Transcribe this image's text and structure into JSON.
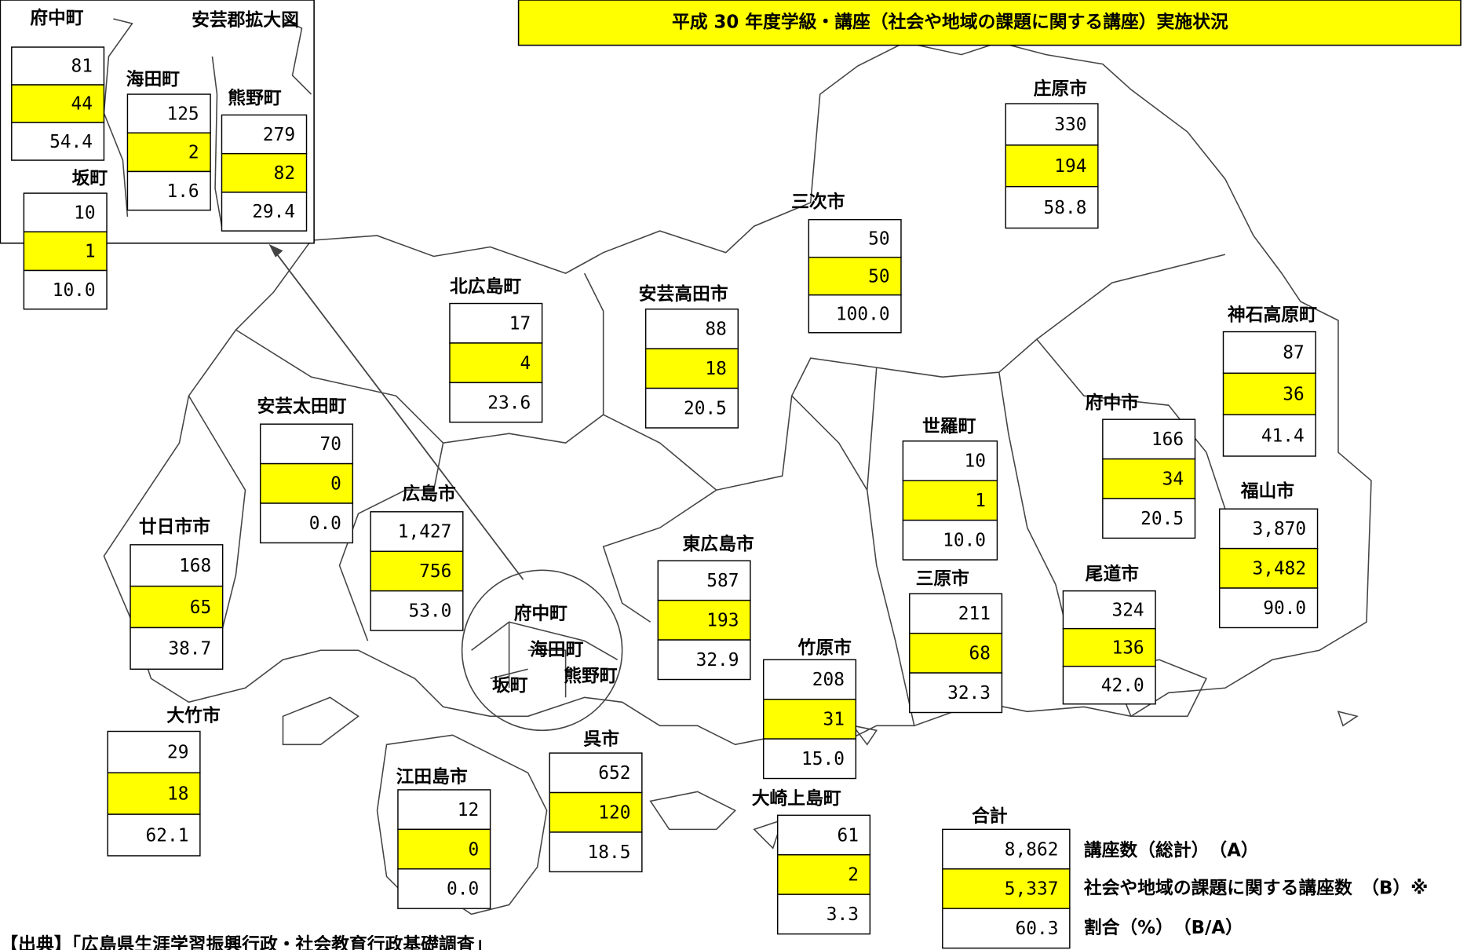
{
  "title": "平成 30 年度学級・講座（社会や地域の課題に関する講座）実施状況",
  "inset": {
    "title": "安芸郡拡大図",
    "towns": [
      {
        "name": "府中町",
        "a": "81",
        "b": "44",
        "ratio": "54.4"
      },
      {
        "name": "海田町",
        "a": "125",
        "b": "2",
        "ratio": "1.6"
      },
      {
        "name": "熊野町",
        "a": "279",
        "b": "82",
        "ratio": "29.4"
      },
      {
        "name": "坂町",
        "a": "10",
        "b": "1",
        "ratio": "10.0"
      }
    ]
  },
  "municipalities": [
    {
      "name": "庄原市",
      "a": "330",
      "b": "194",
      "ratio": "58.8"
    },
    {
      "name": "三次市",
      "a": "50",
      "b": "50",
      "ratio": "100.0"
    },
    {
      "name": "北広島町",
      "a": "17",
      "b": "4",
      "ratio": "23.6"
    },
    {
      "name": "安芸高田市",
      "a": "88",
      "b": "18",
      "ratio": "20.5"
    },
    {
      "name": "神石高原町",
      "a": "87",
      "b": "36",
      "ratio": "41.4"
    },
    {
      "name": "安芸太田町",
      "a": "70",
      "b": "0",
      "ratio": "0.0"
    },
    {
      "name": "世羅町",
      "a": "10",
      "b": "1",
      "ratio": "10.0"
    },
    {
      "name": "府中市",
      "a": "166",
      "b": "34",
      "ratio": "20.5"
    },
    {
      "name": "福山市",
      "a": "3,870",
      "b": "3,482",
      "ratio": "90.0"
    },
    {
      "name": "広島市",
      "a": "1,427",
      "b": "756",
      "ratio": "53.0"
    },
    {
      "name": "廿日市市",
      "a": "168",
      "b": "65",
      "ratio": "38.7"
    },
    {
      "name": "東広島市",
      "a": "587",
      "b": "193",
      "ratio": "32.9"
    },
    {
      "name": "三原市",
      "a": "211",
      "b": "68",
      "ratio": "32.3"
    },
    {
      "name": "尾道市",
      "a": "324",
      "b": "136",
      "ratio": "42.0"
    },
    {
      "name": "竹原市",
      "a": "208",
      "b": "31",
      "ratio": "15.0"
    },
    {
      "name": "大竹市",
      "a": "29",
      "b": "18",
      "ratio": "62.1"
    },
    {
      "name": "呉市",
      "a": "652",
      "b": "120",
      "ratio": "18.5"
    },
    {
      "name": "江田島市",
      "a": "12",
      "b": "0",
      "ratio": "0.0"
    },
    {
      "name": "大崎上島町",
      "a": "61",
      "b": "2",
      "ratio": "3.3"
    }
  ],
  "total": {
    "name": "合計",
    "a": "8,862",
    "b": "5,337",
    "ratio": "60.3",
    "legend": [
      "講座数（総計）　（A）",
      "社会や地域の課題に関する講座数　（B）※",
      "割合（%）　（B/A）"
    ]
  },
  "source": "【出典】「広島県生涯学習振興行政・社会教育行政基礎調査」"
}
